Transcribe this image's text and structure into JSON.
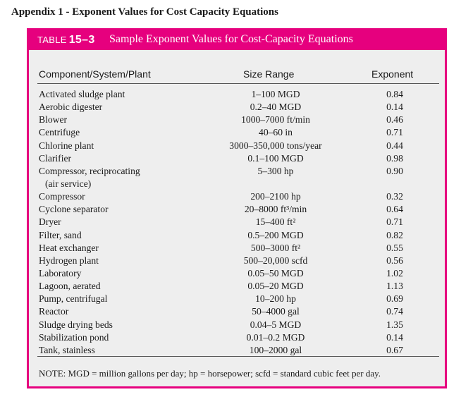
{
  "heading": "Appendix 1 - Exponent Values for Cost Capacity Equations",
  "table": {
    "label": "TABLE",
    "number": "15–3",
    "title": "Sample Exponent Values for Cost-Capacity Equations",
    "columns": [
      "Component/System/Plant",
      "Size Range",
      "Exponent"
    ],
    "rows": [
      {
        "component": "Activated sludge plant",
        "size": "1–100 MGD",
        "exponent": "0.84"
      },
      {
        "component": "Aerobic digester",
        "size": "0.2–40 MGD",
        "exponent": "0.14"
      },
      {
        "component": "Blower",
        "size": "1000–7000 ft/min",
        "exponent": "0.46"
      },
      {
        "component": "Centrifuge",
        "size": "40–60 in",
        "exponent": "0.71"
      },
      {
        "component": "Chlorine plant",
        "size": "3000–350,000 tons/year",
        "exponent": "0.44"
      },
      {
        "component": "Clarifier",
        "size": "0.1–100 MGD",
        "exponent": "0.98"
      },
      {
        "component": "Compressor, reciprocating",
        "component_line2": "(air service)",
        "size": "5–300 hp",
        "exponent": "0.90"
      },
      {
        "component": "Compressor",
        "size": "200–2100 hp",
        "exponent": "0.32"
      },
      {
        "component": "Cyclone separator",
        "size": "20–8000 ft³/min",
        "exponent": "0.64"
      },
      {
        "component": "Dryer",
        "size": "15–400 ft²",
        "exponent": "0.71"
      },
      {
        "component": "Filter, sand",
        "size": "0.5–200 MGD",
        "exponent": "0.82"
      },
      {
        "component": "Heat exchanger",
        "size": "500–3000 ft²",
        "exponent": "0.55"
      },
      {
        "component": "Hydrogen plant",
        "size": "500–20,000 scfd",
        "exponent": "0.56"
      },
      {
        "component": "Laboratory",
        "size": "0.05–50 MGD",
        "exponent": "1.02"
      },
      {
        "component": "Lagoon, aerated",
        "size": "0.05–20 MGD",
        "exponent": "1.13"
      },
      {
        "component": "Pump, centrifugal",
        "size": "10–200 hp",
        "exponent": "0.69"
      },
      {
        "component": "Reactor",
        "size": "50–4000 gal",
        "exponent": "0.74"
      },
      {
        "component": "Sludge drying beds",
        "size": "0.04–5 MGD",
        "exponent": "1.35"
      },
      {
        "component": "Stabilization pond",
        "size": "0.01–0.2 MGD",
        "exponent": "0.14"
      },
      {
        "component": "Tank, stainless",
        "size": "100–2000 gal",
        "exponent": "0.67"
      }
    ],
    "note": "NOTE: MGD = million gallons per day; hp = horsepower; scfd = standard cubic feet per day."
  },
  "colors": {
    "accent": "#e6007e",
    "panel": "#eeeeee"
  }
}
